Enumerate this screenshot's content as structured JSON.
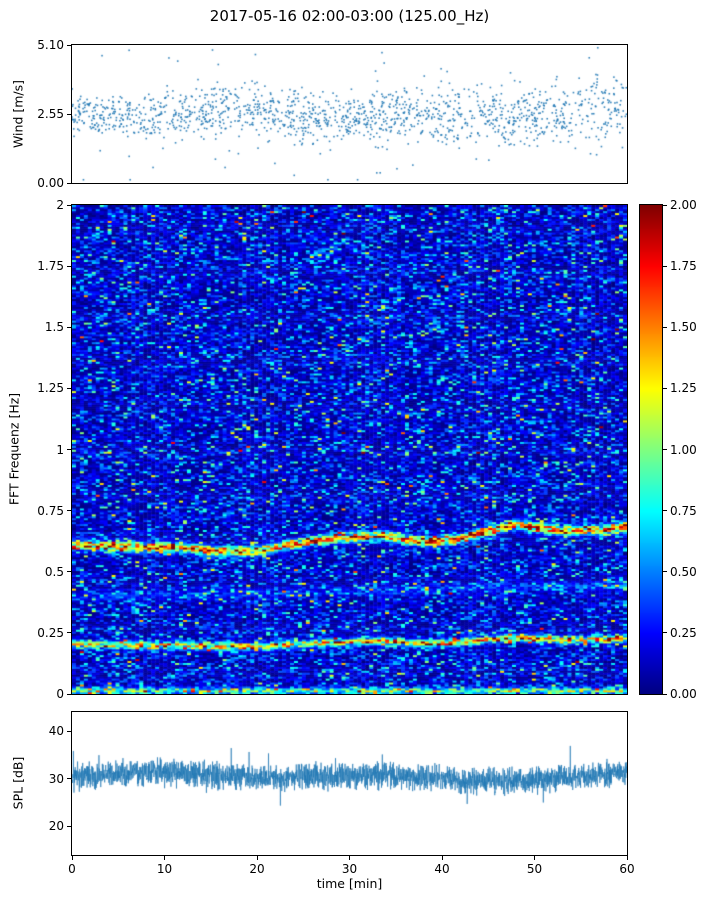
{
  "title": "2017-05-16 02:00-03:00 (125.00_Hz)",
  "xlabel": "time [min]",
  "xticks": [
    0,
    10,
    20,
    30,
    40,
    50,
    60
  ],
  "xtick_labels": [
    "0",
    "10",
    "20",
    "30",
    "40",
    "50",
    "60"
  ],
  "chart_data": [
    {
      "type": "scatter",
      "name": "wind-speed",
      "ylabel": "Wind [m/s]",
      "xlim": [
        0,
        60
      ],
      "ylim": [
        0,
        5.1
      ],
      "yticks": [
        0,
        2.55,
        5.1
      ],
      "ytick_labels": [
        "0.00",
        "2.55",
        "5.10"
      ],
      "marker_color": "#1f77b4",
      "n_points": 1500,
      "mean": 2.55,
      "std": 0.45,
      "description": "dense cloud of small markers around 2.5 m/s, spread widens slightly over the hour, isolated peaks up to 5.1 and dips below 1"
    },
    {
      "type": "heatmap",
      "name": "fft-spectrogram",
      "ylabel": "FFT Frequenz [Hz]",
      "xlim": [
        0,
        60
      ],
      "ylim": [
        0,
        2
      ],
      "yticks": [
        0,
        0.25,
        0.5,
        0.75,
        1,
        1.25,
        1.5,
        1.75,
        2
      ],
      "ytick_labels": [
        "0",
        "0.25",
        "0.5",
        "0.75",
        "1",
        "1.25",
        "1.5",
        "1.75",
        "2"
      ],
      "colormap": "jet",
      "clim": [
        0,
        2
      ],
      "colorbar_ticks": [
        0,
        0.25,
        0.5,
        0.75,
        1,
        1.25,
        1.5,
        1.75,
        2
      ],
      "colorbar_tick_labels": [
        "0.00",
        "0.25",
        "0.50",
        "0.75",
        "1.00",
        "1.25",
        "1.50",
        "1.75",
        "2.00"
      ],
      "background_mean": 0.24,
      "bands": [
        {
          "name": "dominant-band",
          "width_hz": 0.018,
          "intensity": 1.35,
          "drift": [
            [
              0,
              0.615
            ],
            [
              4,
              0.605
            ],
            [
              8,
              0.6
            ],
            [
              12,
              0.6
            ],
            [
              16,
              0.582
            ],
            [
              20,
              0.585
            ],
            [
              24,
              0.615
            ],
            [
              28,
              0.635
            ],
            [
              31,
              0.645
            ],
            [
              34,
              0.648
            ],
            [
              36,
              0.632
            ],
            [
              39,
              0.625
            ],
            [
              42,
              0.635
            ],
            [
              45,
              0.668
            ],
            [
              48,
              0.695
            ],
            [
              51,
              0.678
            ],
            [
              54,
              0.668
            ],
            [
              57,
              0.672
            ],
            [
              60,
              0.685
            ]
          ]
        },
        {
          "name": "sub-band",
          "width_hz": 0.014,
          "intensity": 1.15,
          "drift": [
            [
              0,
              0.205
            ],
            [
              4,
              0.202
            ],
            [
              8,
              0.2
            ],
            [
              12,
              0.2
            ],
            [
              16,
              0.194
            ],
            [
              20,
              0.195
            ],
            [
              24,
              0.205
            ],
            [
              28,
              0.212
            ],
            [
              31,
              0.215
            ],
            [
              34,
              0.216
            ],
            [
              36,
              0.211
            ],
            [
              39,
              0.208
            ],
            [
              42,
              0.212
            ],
            [
              45,
              0.223
            ],
            [
              48,
              0.232
            ],
            [
              51,
              0.226
            ],
            [
              54,
              0.222
            ],
            [
              57,
              0.224
            ],
            [
              60,
              0.228
            ]
          ]
        },
        {
          "name": "low-frequency-band",
          "width_hz": 0.012,
          "intensity": 0.8,
          "drift": [
            [
              0,
              0.014
            ],
            [
              60,
              0.014
            ]
          ]
        },
        {
          "name": "faint-harmonic",
          "width_hz": 0.02,
          "intensity": 0.2,
          "drift": [
            [
              0,
              0.4
            ],
            [
              30,
              0.42
            ],
            [
              60,
              0.45
            ]
          ]
        }
      ],
      "description": "mottled blue background (values ~0-0.5) with bright drifting spectral lines near 0.6 Hz and 0.2 Hz reaching 2.0, plus a bright line at the bottom edge"
    },
    {
      "type": "line",
      "name": "spl",
      "ylabel": "SPL [dB]",
      "xlim": [
        0,
        60
      ],
      "ylim": [
        14,
        44
      ],
      "yticks": [
        20,
        30,
        40
      ],
      "ytick_labels": [
        "20",
        "30",
        "40"
      ],
      "line_color": "#1f77b4",
      "mean": 30,
      "noise_std": 3,
      "description": "dense broadband noisy trace around 30 dB, envelope roughly 23-38 dB with spikes to ~42 and dips to ~17"
    }
  ]
}
